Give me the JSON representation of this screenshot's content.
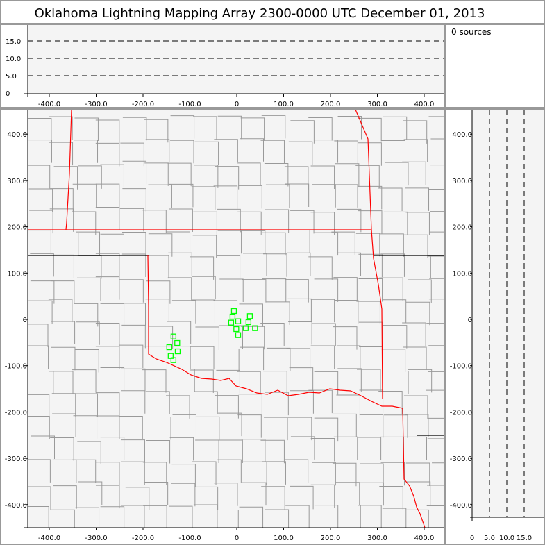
{
  "title": "Oklahoma Lightning Mapping Array   2300-0000 UTC  December 01, 2013",
  "source_count": "0 sources",
  "colors": {
    "frame": "#999999",
    "plot_bg": "#f4f4f4",
    "state_border": "#ff0000",
    "county_border": "#999999",
    "station": "#00ff00"
  },
  "altitude_panel": {
    "y_ticks": [
      "0",
      "5.0",
      "10.0",
      "15.0"
    ],
    "x_ticks": [
      "-400.0",
      "-300.0",
      "-200.0",
      "-100.0",
      "0",
      "100.0",
      "200.0",
      "300.0",
      "400.0"
    ]
  },
  "map_panel": {
    "x_ticks": [
      "-400.0",
      "-300.0",
      "-200.0",
      "-100.0",
      "0",
      "100.0",
      "200.0",
      "300.0",
      "400.0"
    ],
    "y_ticks": [
      "400.0",
      "300.0",
      "200.0",
      "100.0",
      "0",
      "-100.0",
      "-200.0",
      "-300.0",
      "-400.0"
    ],
    "stations_km": [
      [
        -6,
        18
      ],
      [
        -9,
        6
      ],
      [
        -12,
        -7
      ],
      [
        3,
        -4
      ],
      [
        28,
        7
      ],
      [
        25,
        -6
      ],
      [
        -1,
        -21
      ],
      [
        19,
        -19
      ],
      [
        39,
        -19
      ],
      [
        3,
        -34
      ],
      [
        -135,
        -37
      ],
      [
        -127,
        -51
      ],
      [
        -144,
        -60
      ],
      [
        -126,
        -69
      ],
      [
        -141,
        -79
      ],
      [
        -135,
        -88
      ]
    ]
  },
  "side_panel": {
    "y_ticks": [
      "400.0",
      "300.0",
      "200.0",
      "100.0",
      "0",
      "-100.0",
      "-200.0",
      "-300.0",
      "-400.0"
    ],
    "x_ticks": [
      "0",
      "5.0",
      "10.0",
      "15.0"
    ]
  }
}
